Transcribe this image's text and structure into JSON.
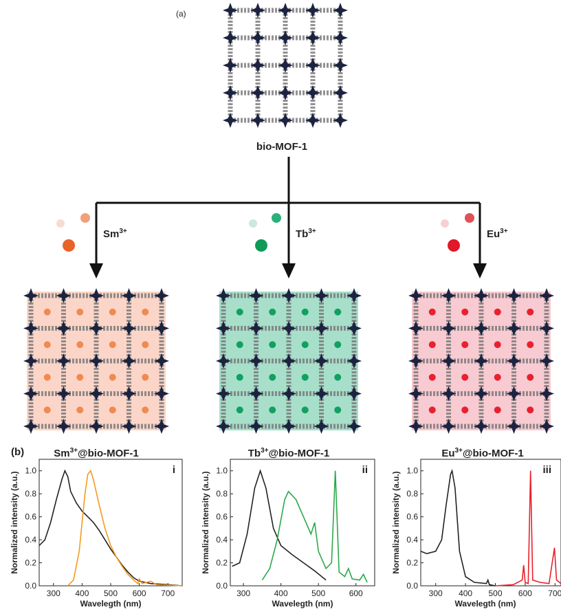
{
  "diagram": {
    "panel_a": "(a)",
    "panel_b": "(b)",
    "parent": "bio-MOF-1",
    "ions": [
      {
        "base": "Sm",
        "sup": "3+"
      },
      {
        "base": "Tb",
        "sup": "3+"
      },
      {
        "base": "Eu",
        "sup": "3+"
      }
    ],
    "products": [
      {
        "base": "Sm",
        "sup": "3+",
        "rest": "@bio-MOF-1"
      },
      {
        "base": "Tb",
        "sup": "3+",
        "rest": "@bio-MOF-1"
      },
      {
        "base": "Eu",
        "sup": "3+",
        "rest": "@bio-MOF-1"
      }
    ]
  },
  "chart_data": [
    {
      "type": "line",
      "panel": "i",
      "ylabel": "Normalized intensity (a.u.)",
      "xlabel": "Wavelegth (nm)",
      "xlim": [
        250,
        750
      ],
      "xticks": [
        300,
        400,
        500,
        600,
        700
      ],
      "ylim": [
        0,
        1.1
      ],
      "yticks": [
        {
          "value": 0,
          "label": "0.0"
        },
        0.2,
        0.4,
        0.6,
        0.8,
        {
          "value": 1,
          "label": "1.0"
        }
      ],
      "series": [
        {
          "color": "#222222",
          "x": [
            250,
            270,
            290,
            310,
            330,
            340,
            350,
            360,
            380,
            400,
            420,
            440,
            460,
            480,
            500,
            520,
            540,
            560,
            580,
            600,
            640,
            700,
            750
          ],
          "values": [
            0.35,
            0.4,
            0.55,
            0.75,
            0.93,
            1.0,
            0.95,
            0.82,
            0.72,
            0.65,
            0.6,
            0.55,
            0.48,
            0.4,
            0.32,
            0.25,
            0.18,
            0.12,
            0.07,
            0.04,
            0.02,
            0.01,
            0
          ]
        },
        {
          "color": "#f39a1e",
          "x": [
            350,
            370,
            390,
            400,
            410,
            420,
            430,
            440,
            460,
            480,
            500,
            520,
            540,
            560,
            580,
            595,
            600,
            610,
            640,
            660,
            750
          ],
          "values": [
            0,
            0.05,
            0.3,
            0.55,
            0.8,
            0.97,
            1.0,
            0.92,
            0.7,
            0.5,
            0.35,
            0.25,
            0.17,
            0.1,
            0.05,
            0.02,
            0.06,
            0.02,
            0.04,
            0.01,
            0
          ]
        }
      ]
    },
    {
      "type": "line",
      "panel": "ii",
      "ylabel": "Normalized intensity (a.u.)",
      "xlabel": "Wavelegth (nm)",
      "xlim": [
        265,
        650
      ],
      "xticks": [
        300,
        400,
        500,
        600
      ],
      "ylim": [
        0,
        1.1
      ],
      "yticks": [
        {
          "value": 0,
          "label": "0.0"
        },
        0.2,
        0.4,
        0.6,
        0.8,
        {
          "value": 1,
          "label": "1.0"
        }
      ],
      "series": [
        {
          "color": "#222222",
          "x": [
            270,
            290,
            310,
            330,
            345,
            360,
            380,
            400,
            430,
            460,
            490,
            520
          ],
          "values": [
            0.17,
            0.2,
            0.45,
            0.85,
            1.0,
            0.85,
            0.5,
            0.35,
            0.27,
            0.2,
            0.13,
            0.05
          ]
        },
        {
          "color": "#2aa84a",
          "x": [
            350,
            370,
            390,
            410,
            420,
            440,
            460,
            480,
            490,
            500,
            520,
            535,
            545,
            555,
            570,
            580,
            590,
            610,
            620,
            630
          ],
          "values": [
            0.05,
            0.15,
            0.4,
            0.75,
            0.82,
            0.75,
            0.6,
            0.45,
            0.55,
            0.3,
            0.15,
            0.2,
            1.0,
            0.12,
            0.08,
            0.15,
            0.06,
            0.05,
            0.1,
            0.03
          ]
        }
      ]
    },
    {
      "type": "line",
      "panel": "iii",
      "ylabel": "Normalized intensity (a.u.)",
      "xlabel": "Wavelegth (nm)",
      "xlim": [
        250,
        720
      ],
      "xticks": [
        300,
        400,
        500,
        600,
        700
      ],
      "ylim": [
        0,
        1.1
      ],
      "yticks": [
        {
          "value": 0,
          "label": "0.0"
        },
        0.2,
        0.4,
        0.6,
        0.8,
        {
          "value": 1,
          "label": "1.0"
        }
      ],
      "series": [
        {
          "color": "#222222",
          "x": [
            250,
            270,
            300,
            320,
            335,
            350,
            355,
            365,
            380,
            400,
            430,
            470,
            475,
            480,
            500
          ],
          "values": [
            0.3,
            0.28,
            0.3,
            0.4,
            0.7,
            0.97,
            1.0,
            0.85,
            0.3,
            0.08,
            0.03,
            0.02,
            0.05,
            0.01,
            0
          ]
        },
        {
          "color": "#e8202a",
          "x": [
            500,
            560,
            590,
            595,
            600,
            610,
            618,
            625,
            650,
            680,
            698,
            705,
            720
          ],
          "values": [
            0,
            0.01,
            0.05,
            0.18,
            0.03,
            0.02,
            1.0,
            0.05,
            0.03,
            0.02,
            0.33,
            0.05,
            0.02
          ]
        }
      ]
    }
  ]
}
